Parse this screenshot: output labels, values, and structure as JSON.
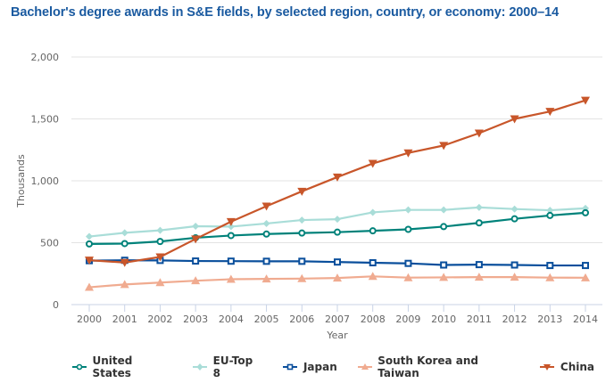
{
  "chart_data": {
    "type": "line",
    "title": "Bachelor's degree awards in S&E fields, by selected region, country, or economy: 2000–14",
    "xlabel": "Year",
    "ylabel": "Thousands",
    "ylim": [
      0,
      2000
    ],
    "yticks": [
      0,
      500,
      1000,
      1500,
      2000
    ],
    "ytick_labels": [
      "0",
      "500",
      "1,000",
      "1,500",
      "2,000"
    ],
    "grid": true,
    "legend_position": "bottom",
    "x": [
      "2000",
      "2001",
      "2002",
      "2003",
      "2004",
      "2005",
      "2006",
      "2007",
      "2008",
      "2009",
      "2010",
      "2011",
      "2012",
      "2013",
      "2014"
    ],
    "series": [
      {
        "name": "United States",
        "color": "#00827a",
        "marker": "circle",
        "values": [
          490,
          493,
          510,
          540,
          558,
          570,
          578,
          585,
          596,
          608,
          630,
          660,
          693,
          720,
          742
        ]
      },
      {
        "name": "EU-Top 8",
        "color": "#a9ddd8",
        "marker": "diamond",
        "values": [
          550,
          580,
          600,
          633,
          630,
          655,
          683,
          690,
          745,
          765,
          765,
          785,
          772,
          762,
          778
        ]
      },
      {
        "name": "Japan",
        "color": "#0a4f9c",
        "marker": "square",
        "values": [
          355,
          358,
          357,
          352,
          351,
          350,
          350,
          344,
          338,
          333,
          320,
          323,
          320,
          316,
          316
        ]
      },
      {
        "name": "South Korea and Taiwan",
        "color": "#f0ab90",
        "marker": "triangle-up",
        "values": [
          140,
          163,
          178,
          193,
          205,
          208,
          210,
          215,
          228,
          218,
          220,
          222,
          222,
          218,
          217
        ]
      },
      {
        "name": "China",
        "color": "#c8562a",
        "marker": "triangle-down",
        "values": [
          359,
          340,
          385,
          530,
          670,
          795,
          915,
          1030,
          1140,
          1225,
          1285,
          1385,
          1500,
          1560,
          1650
        ]
      }
    ]
  }
}
